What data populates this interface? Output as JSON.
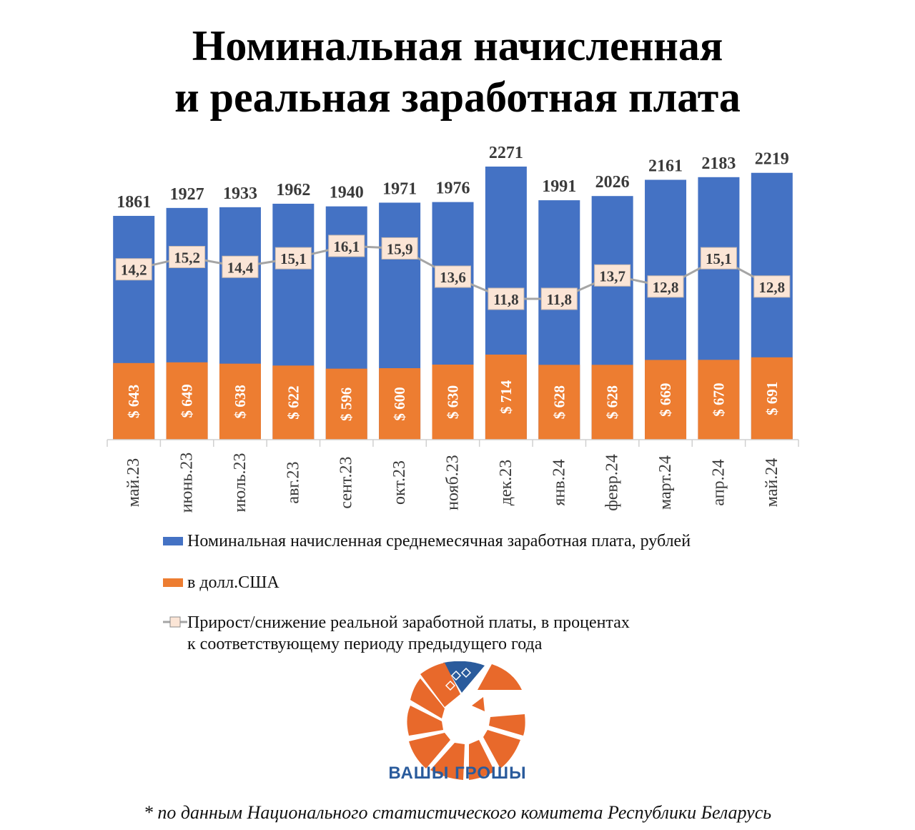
{
  "title_line1": "Номинальная начисленная",
  "title_line2": "и реальная заработная плата",
  "chart_data": {
    "type": "bar",
    "categories": [
      "май.23",
      "июнь.23",
      "июль.23",
      "авг.23",
      "сент.23",
      "окт.23",
      "нояб.23",
      "дек.23",
      "янв.24",
      "февр.24",
      "март.24",
      "апр.24",
      "май.24"
    ],
    "series": [
      {
        "name": "Номинальная начисленная среднемесячная заработная плата, рублей",
        "type": "bar",
        "color": "#4472c4",
        "values": [
          1861,
          1927,
          1933,
          1962,
          1940,
          1971,
          1976,
          2271,
          1991,
          2026,
          2161,
          2183,
          2219
        ],
        "labels": [
          "1861",
          "1927",
          "1933",
          "1962",
          "1940",
          "1971",
          "1976",
          "2271",
          "1991",
          "2026",
          "2161",
          "2183",
          "2219"
        ]
      },
      {
        "name": "в долл.США",
        "type": "bar",
        "color": "#ed7d31",
        "values": [
          643,
          649,
          638,
          622,
          596,
          600,
          630,
          714,
          628,
          628,
          669,
          670,
          691
        ],
        "labels": [
          "$ 643",
          "$ 649",
          "$ 638",
          "$ 622",
          "$ 596",
          "$ 600",
          "$ 630",
          "$ 714",
          "$ 628",
          "$ 628",
          "$ 669",
          "$ 670",
          "$ 691"
        ]
      },
      {
        "name": "Прирост/снижение реальной заработной платы, в процентах к соответствующему периоду предыдущего года",
        "type": "line",
        "color": "#a5a5a5",
        "values": [
          14.2,
          15.2,
          14.4,
          15.1,
          16.1,
          15.9,
          13.6,
          11.8,
          11.8,
          13.7,
          12.8,
          15.1,
          12.8
        ],
        "labels": [
          "14,2",
          "15,2",
          "14,4",
          "15,1",
          "16,1",
          "15,9",
          "13,6",
          "11,8",
          "11,8",
          "13,7",
          "12,8",
          "15,1",
          "12,8"
        ]
      }
    ],
    "ylim_rub": [
      0,
      2271
    ],
    "ylim_usd": [
      0,
      714
    ],
    "ylim_pct": [
      11.8,
      16.1
    ],
    "grid": false,
    "legend_position": "bottom"
  },
  "legend": {
    "nominal": "Номинальная начисленная среднемесячная заработная плата, рублей",
    "usd": "в долл.США",
    "real_line1": "Прирост/снижение реальной заработной платы, в процентах",
    "real_line2": "к соответствующему периоду предыдущего года"
  },
  "logo_text": "ВАШЫ ГРОШЫ",
  "footnote": "* по данным Национального статистического комитета Республики Беларусь",
  "colors": {
    "blue": "#4472c4",
    "orange": "#ed7d31",
    "line": "#a5a5a5",
    "marker_fill": "#fbe5d6",
    "logo_orange": "#e8692b",
    "logo_blue": "#2a5b9c"
  }
}
